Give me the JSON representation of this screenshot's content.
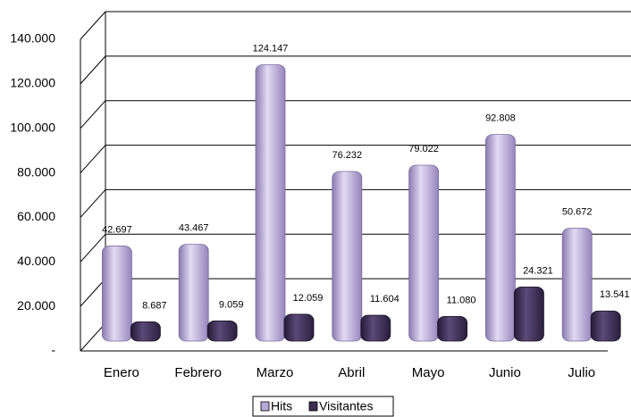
{
  "chart_data": {
    "type": "bar3d",
    "categories": [
      "Enero",
      "Febrero",
      "Marzo",
      "Abril",
      "Mayo",
      "Junio",
      "Julio"
    ],
    "series": [
      {
        "name": "Hits",
        "color": "#b6a8d8",
        "values": [
          42697,
          43467,
          124147,
          76232,
          79022,
          92808,
          50672
        ],
        "value_labels": [
          "42.697",
          "43.467",
          "124.147",
          "76.232",
          "79.022",
          "92.808",
          "50.672"
        ]
      },
      {
        "name": "Visitantes",
        "color": "#3b2d52",
        "values": [
          8687,
          9059,
          12059,
          11604,
          11080,
          24321,
          13541
        ],
        "value_labels": [
          "8.687",
          "9.059",
          "12.059",
          "11.604",
          "11.080",
          "24.321",
          "13.541"
        ]
      }
    ],
    "ylim": [
      0,
      140000
    ],
    "yticks": [
      {
        "value": 0,
        "label": "-"
      },
      {
        "value": 20000,
        "label": "20.000"
      },
      {
        "value": 40000,
        "label": "40.000"
      },
      {
        "value": 60000,
        "label": "60.000"
      },
      {
        "value": 80000,
        "label": "80.000"
      },
      {
        "value": 100000,
        "label": "100.000"
      },
      {
        "value": 120000,
        "label": "120.000"
      },
      {
        "value": 140000,
        "label": "140.000"
      }
    ],
    "grid": true
  }
}
